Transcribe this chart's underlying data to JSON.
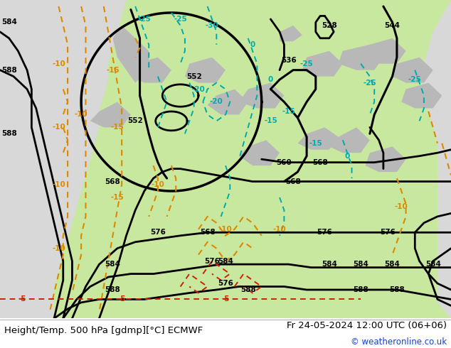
{
  "title_left": "Height/Temp. 500 hPa [gdmp][°C] ECMWF",
  "title_right": "Fr 24-05-2024 12:00 UTC (06+06)",
  "copyright": "© weatheronline.co.uk",
  "fig_width": 6.34,
  "fig_height": 4.9,
  "dpi": 100,
  "bg_color": "#d8d8d8",
  "land_green": "#c8e8a0",
  "land_grey": "#b8b8b8",
  "ocean_color": "#d8d8d8",
  "bottom_bar_color": "#ffffff",
  "title_fontsize": 9.5,
  "copyright_fontsize": 8.5,
  "copyright_color": "#1144cc"
}
